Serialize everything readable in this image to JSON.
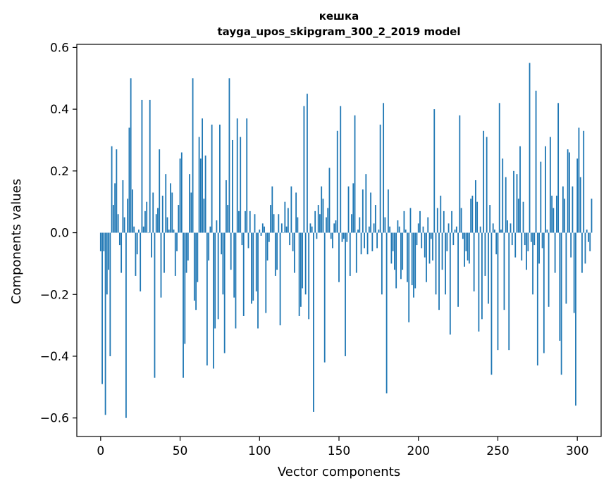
{
  "chart_data": {
    "type": "bar",
    "title_line1": "кешка",
    "title_line2": "tayga_upos_skipgram_300_2_2019 model",
    "xlabel": "Vector components",
    "ylabel": "Components values",
    "xlim": [
      -15,
      315
    ],
    "ylim": [
      -0.66,
      0.61
    ],
    "xticks": [
      0,
      50,
      100,
      150,
      200,
      250,
      300
    ],
    "yticks": [
      -0.6,
      -0.4,
      -0.2,
      0.0,
      0.2,
      0.4,
      0.6
    ],
    "xtick_labels": [
      "0",
      "50",
      "100",
      "150",
      "200",
      "250",
      "300"
    ],
    "ytick_labels": [
      "−0.6",
      "−0.4",
      "−0.2",
      "0.0",
      "0.2",
      "0.4",
      "0.6"
    ],
    "color": "#1f77b4",
    "values": [
      -0.06,
      -0.49,
      -0.06,
      -0.59,
      -0.2,
      -0.12,
      -0.4,
      0.28,
      0.09,
      0.16,
      0.27,
      0.06,
      -0.04,
      -0.13,
      0.17,
      0.05,
      -0.6,
      0.11,
      0.34,
      0.5,
      0.14,
      0.02,
      -0.14,
      -0.07,
      0.01,
      -0.19,
      0.43,
      0.02,
      0.07,
      0.1,
      0.0,
      0.43,
      -0.08,
      0.13,
      -0.47,
      0.06,
      0.08,
      0.27,
      -0.21,
      0.12,
      -0.13,
      0.19,
      0.05,
      0.01,
      0.16,
      0.13,
      0.01,
      -0.14,
      -0.06,
      0.09,
      0.24,
      0.26,
      -0.47,
      -0.36,
      -0.13,
      -0.09,
      0.19,
      0.13,
      0.5,
      -0.22,
      -0.25,
      -0.16,
      0.31,
      0.24,
      0.37,
      0.11,
      0.25,
      -0.43,
      -0.09,
      0.02,
      0.35,
      -0.44,
      -0.31,
      0.04,
      -0.28,
      0.35,
      -0.07,
      -0.2,
      -0.39,
      0.17,
      0.09,
      0.5,
      -0.12,
      0.3,
      -0.21,
      -0.31,
      0.37,
      0.07,
      0.31,
      -0.04,
      -0.27,
      0.07,
      0.37,
      -0.05,
      0.07,
      -0.23,
      -0.22,
      0.06,
      -0.19,
      -0.31,
      0.01,
      -0.01,
      0.03,
      0.02,
      -0.26,
      -0.09,
      -0.03,
      0.09,
      0.15,
      0.06,
      -0.14,
      -0.12,
      0.06,
      -0.3,
      0.03,
      0.0,
      0.1,
      0.02,
      0.08,
      -0.04,
      0.15,
      -0.06,
      -0.13,
      0.13,
      0.05,
      -0.27,
      -0.24,
      -0.18,
      0.41,
      -0.2,
      0.45,
      -0.28,
      0.03,
      0.02,
      -0.58,
      0.07,
      -0.02,
      0.09,
      0.06,
      0.15,
      0.11,
      -0.42,
      0.05,
      0.08,
      0.21,
      -0.02,
      -0.05,
      0.03,
      0.04,
      0.33,
      -0.16,
      0.41,
      -0.03,
      -0.02,
      -0.4,
      -0.03,
      0.15,
      -0.14,
      0.06,
      0.16,
      0.38,
      -0.13,
      0.01,
      0.05,
      -0.07,
      0.14,
      -0.05,
      0.19,
      -0.07,
      0.02,
      0.13,
      -0.06,
      0.03,
      0.09,
      -0.05,
      0.01,
      0.35,
      -0.2,
      0.42,
      0.05,
      -0.52,
      0.14,
      0.02,
      -0.1,
      -0.06,
      -0.12,
      -0.18,
      0.04,
      0.02,
      -0.15,
      -0.12,
      0.07,
      0.01,
      -0.16,
      -0.29,
      0.08,
      -0.17,
      -0.21,
      -0.18,
      -0.04,
      0.03,
      0.07,
      -0.05,
      0.02,
      -0.08,
      -0.16,
      0.05,
      -0.1,
      -0.02,
      -0.09,
      0.4,
      -0.2,
      0.08,
      -0.25,
      0.12,
      -0.12,
      0.07,
      -0.2,
      -0.06,
      0.03,
      -0.33,
      0.07,
      -0.04,
      0.01,
      0.02,
      -0.24,
      0.38,
      0.08,
      -0.02,
      -0.11,
      -0.06,
      -0.09,
      -0.1,
      0.11,
      0.12,
      -0.19,
      0.17,
      0.1,
      -0.32,
      0.02,
      -0.28,
      0.33,
      -0.14,
      0.31,
      -0.23,
      0.09,
      -0.46,
      0.03,
      0.01,
      -0.07,
      -0.38,
      0.42,
      0.01,
      0.24,
      -0.25,
      0.18,
      0.04,
      -0.38,
      0.03,
      -0.04,
      0.2,
      -0.08,
      0.19,
      0.11,
      0.28,
      -0.09,
      0.1,
      -0.04,
      -0.12,
      -0.06,
      0.55,
      -0.03,
      -0.2,
      -0.04,
      0.46,
      -0.43,
      -0.1,
      0.23,
      -0.05,
      -0.39,
      0.28,
      0.01,
      -0.24,
      0.31,
      0.12,
      0.08,
      -0.13,
      0.12,
      0.42,
      -0.35,
      -0.46,
      0.15,
      0.11,
      -0.23,
      0.27,
      0.26,
      -0.08,
      0.15,
      -0.26,
      -0.56,
      0.24,
      0.34,
      0.18,
      -0.13,
      0.33,
      -0.1,
      0.01,
      -0.03,
      -0.06,
      0.11
    ]
  }
}
